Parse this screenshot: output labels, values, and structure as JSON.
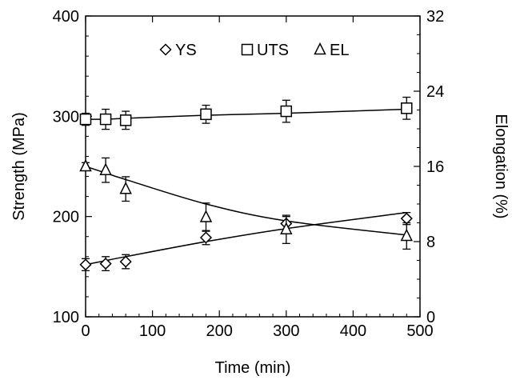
{
  "chart_data": {
    "type": "line",
    "title": "",
    "xlabel": "Time (min)",
    "ylabel": "Strength (MPa)",
    "y2label": "Elongation (%)",
    "xlim": [
      0,
      500
    ],
    "ylim": [
      100,
      400
    ],
    "y2lim": [
      0,
      32
    ],
    "xticks": [
      "0",
      "100",
      "200",
      "300",
      "400",
      "500"
    ],
    "yticks": [
      "100",
      "200",
      "300",
      "400"
    ],
    "y2ticks": [
      "0",
      "8",
      "16",
      "24",
      "32"
    ],
    "grid": false,
    "legend_position": "top-center",
    "x": [
      0,
      30,
      60,
      180,
      300,
      480
    ],
    "series": [
      {
        "name": "YS",
        "axis": "left",
        "marker": "diamond",
        "values": [
          152,
          153,
          155,
          179,
          193,
          198
        ],
        "errors": [
          6,
          7,
          7,
          7,
          7,
          6
        ],
        "fit": [
          152,
          156,
          160,
          175,
          188,
          204
        ]
      },
      {
        "name": "UTS",
        "axis": "left",
        "marker": "square",
        "values": [
          297,
          297,
          296,
          302,
          305,
          308
        ],
        "errors": [
          6,
          10,
          9,
          9,
          11,
          11
        ],
        "fit": [
          297,
          297,
          298,
          301,
          303,
          307
        ]
      },
      {
        "name": "EL",
        "axis": "right",
        "marker": "triangle",
        "values": [
          16.0,
          15.6,
          13.6,
          10.6,
          9.3,
          8.6
        ],
        "errors": [
          0.4,
          1.3,
          1.3,
          1.5,
          1.5,
          1.4
        ],
        "fit": [
          16.0,
          15.3,
          14.6,
          12.0,
          10.2,
          8.7
        ]
      }
    ]
  }
}
